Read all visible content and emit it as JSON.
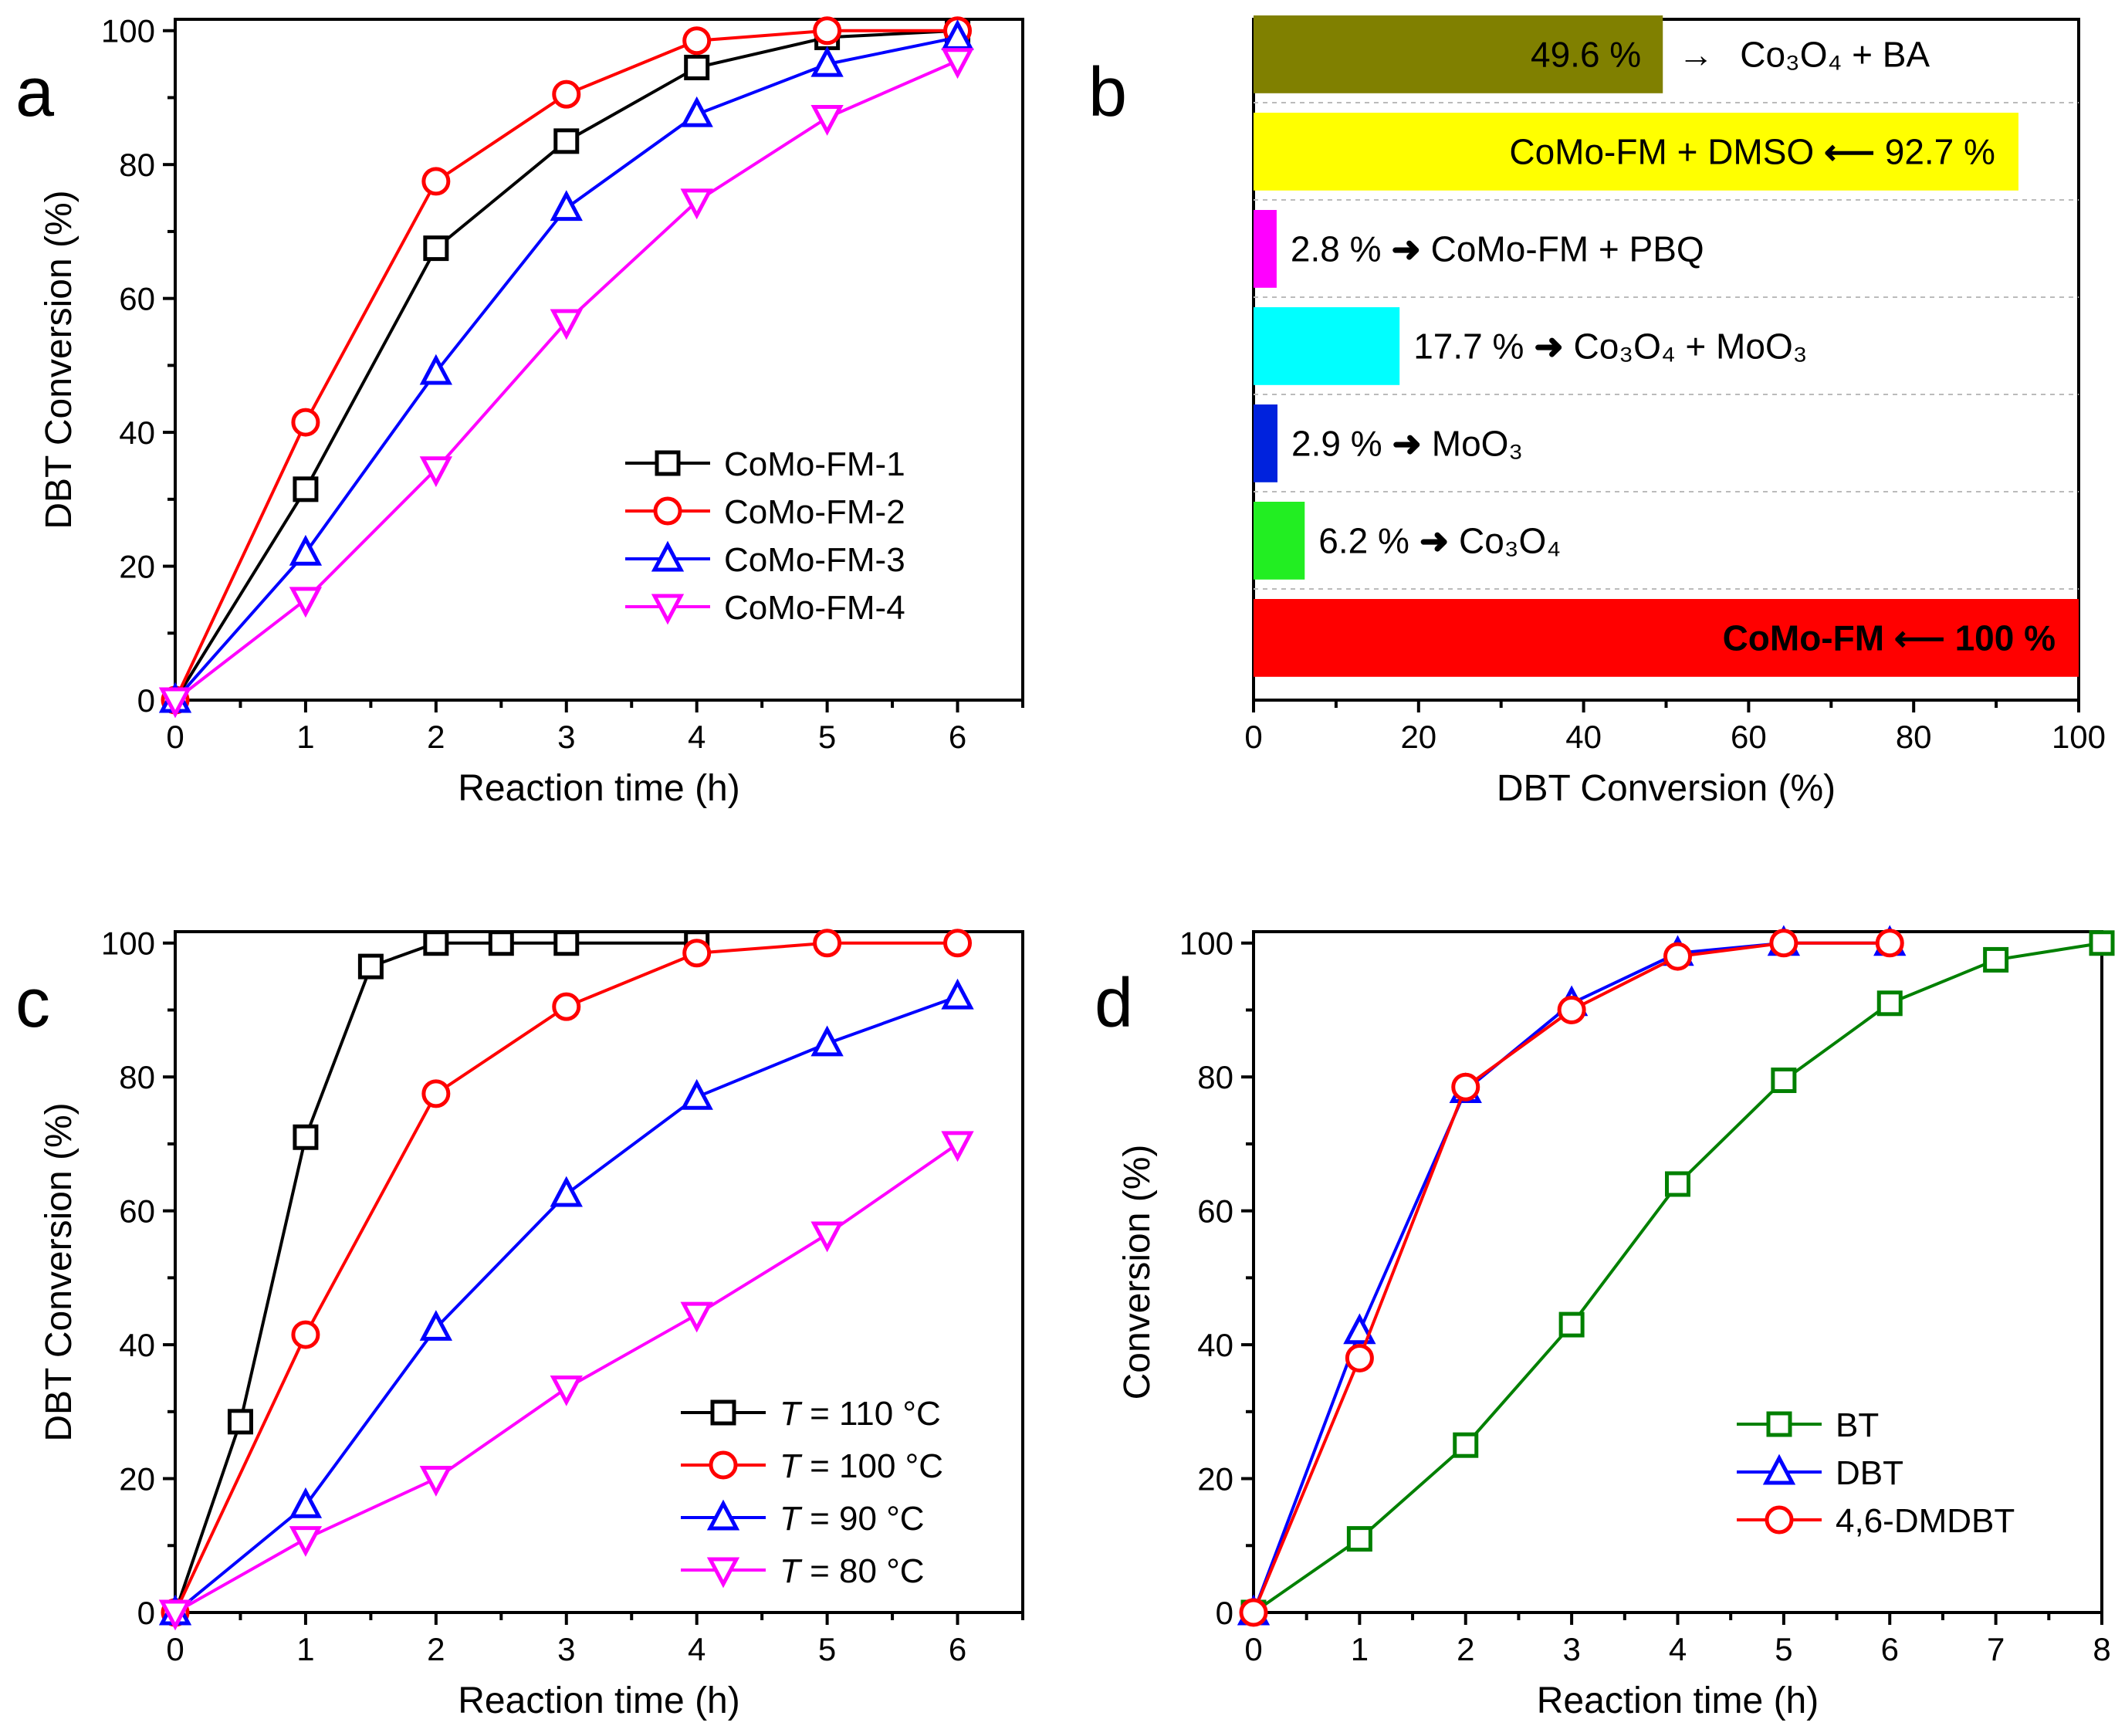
{
  "chart_data": [
    {
      "panel": "a",
      "type": "line",
      "xlabel": "Reaction time (h)",
      "ylabel": "DBT Conversion (%)",
      "xlim": [
        0,
        6.5
      ],
      "ylim": [
        0,
        101.7
      ],
      "xticks": [
        0,
        1,
        2,
        3,
        4,
        5,
        6
      ],
      "yticks": [
        0,
        20,
        40,
        60,
        80,
        100
      ],
      "legend_position": "bottom-right",
      "series": [
        {
          "name": "CoMo-FM-1",
          "color": "#000000",
          "marker": "square",
          "x": [
            0,
            1,
            2,
            3,
            4,
            5,
            6
          ],
          "y": [
            0,
            31.5,
            67.5,
            83.5,
            94.5,
            99,
            100
          ]
        },
        {
          "name": "CoMo-FM-2",
          "color": "#ff0000",
          "marker": "circle",
          "x": [
            0,
            1,
            2,
            3,
            4,
            5,
            6
          ],
          "y": [
            0,
            41.5,
            77.5,
            90.5,
            98.5,
            100,
            100
          ]
        },
        {
          "name": "CoMo-FM-3",
          "color": "#0000ff",
          "marker": "triangle-up",
          "x": [
            0,
            1,
            2,
            3,
            4,
            5,
            6
          ],
          "y": [
            0,
            22,
            49,
            73.5,
            87.5,
            95,
            99
          ]
        },
        {
          "name": "CoMo-FM-4",
          "color": "#ff00ff",
          "marker": "triangle-down",
          "x": [
            0,
            1,
            2,
            3,
            4,
            5,
            6
          ],
          "y": [
            0,
            15,
            34.5,
            56.5,
            74.5,
            87,
            95.5
          ]
        }
      ]
    },
    {
      "panel": "b",
      "type": "bar",
      "orientation": "horizontal",
      "xlabel": "DBT Conversion (%)",
      "xlim": [
        0,
        100
      ],
      "xticks": [
        0,
        20,
        40,
        60,
        80,
        100
      ],
      "bars": [
        {
          "category": "Co₃O₄ + BA",
          "value": 49.6,
          "value_label": "49.6 %",
          "arrow": "right",
          "color": "#808000"
        },
        {
          "category": "CoMo-FM + DMSO",
          "value": 92.7,
          "value_label": "92.7 %",
          "arrow": "left",
          "color": "#ffff00"
        },
        {
          "category": "CoMo-FM + PBQ",
          "value": 2.8,
          "value_label": "2.8 %",
          "arrow": "right",
          "color": "#ff00ff"
        },
        {
          "category": "Co₃O₄ + MoO₃",
          "value": 17.7,
          "value_label": "17.7 %",
          "arrow": "right",
          "color": "#00ffff"
        },
        {
          "category": "MoO₃",
          "value": 2.9,
          "value_label": "2.9 %",
          "arrow": "right",
          "color": "#0022dd"
        },
        {
          "category": "Co₃O₄",
          "value": 6.2,
          "value_label": "6.2 %",
          "arrow": "right",
          "color": "#22ee22"
        },
        {
          "category": "CoMo-FM",
          "value": 100,
          "value_label": "100 %",
          "arrow": "left",
          "color": "#ff0000"
        }
      ]
    },
    {
      "panel": "c",
      "type": "line",
      "xlabel": "Reaction time (h)",
      "ylabel": "DBT Conversion (%)",
      "xlim": [
        0,
        6.5
      ],
      "ylim": [
        0,
        101.7
      ],
      "xticks": [
        0,
        1,
        2,
        3,
        4,
        5,
        6
      ],
      "yticks": [
        0,
        20,
        40,
        60,
        80,
        100
      ],
      "legend_position": "bottom-right",
      "series": [
        {
          "name": "T = 110 °C",
          "color": "#000000",
          "marker": "square",
          "x": [
            0,
            0.5,
            1,
            1.5,
            2,
            2.5,
            3,
            4
          ],
          "y": [
            0,
            28.5,
            71,
            96.5,
            100,
            100,
            100,
            100
          ]
        },
        {
          "name": "T = 100 °C",
          "color": "#ff0000",
          "marker": "circle",
          "x": [
            0,
            1,
            2,
            3,
            4,
            5,
            6
          ],
          "y": [
            0,
            41.5,
            77.5,
            90.5,
            98.5,
            100,
            100
          ]
        },
        {
          "name": "T = 90 °C",
          "color": "#0000ff",
          "marker": "triangle-up",
          "x": [
            0,
            1,
            2,
            3,
            4,
            5,
            6
          ],
          "y": [
            0,
            16,
            42.5,
            62.5,
            77,
            85,
            92
          ]
        },
        {
          "name": "T = 80 °C",
          "color": "#ff00ff",
          "marker": "triangle-down",
          "x": [
            0,
            1,
            2,
            3,
            4,
            5,
            6
          ],
          "y": [
            0,
            11,
            20,
            33.5,
            44.5,
            56.5,
            70
          ]
        }
      ]
    },
    {
      "panel": "d",
      "type": "line",
      "xlabel": "Reaction time (h)",
      "ylabel": "Conversion (%)",
      "xlim": [
        0,
        8
      ],
      "ylim": [
        0,
        101.7
      ],
      "xticks": [
        0,
        1,
        2,
        3,
        4,
        5,
        6,
        7,
        8
      ],
      "yticks": [
        0,
        20,
        40,
        60,
        80,
        100
      ],
      "legend_position": "bottom-right",
      "series": [
        {
          "name": "BT",
          "color": "#008000",
          "marker": "square",
          "x": [
            0,
            1,
            2,
            3,
            4,
            5,
            6,
            7,
            8
          ],
          "y": [
            0,
            11,
            25,
            43,
            64,
            79.5,
            91,
            97.5,
            100
          ]
        },
        {
          "name": "DBT",
          "color": "#0000ff",
          "marker": "triangle-up",
          "x": [
            0,
            1,
            2,
            3,
            4,
            5,
            6
          ],
          "y": [
            0,
            42,
            78,
            91,
            98.5,
            100,
            100
          ]
        },
        {
          "name": "4,6-DMDBT",
          "color": "#ff0000",
          "marker": "circle",
          "x": [
            0,
            1,
            2,
            3,
            4,
            5,
            6
          ],
          "y": [
            0,
            38,
            78.5,
            90,
            98,
            100,
            100
          ]
        }
      ]
    }
  ]
}
